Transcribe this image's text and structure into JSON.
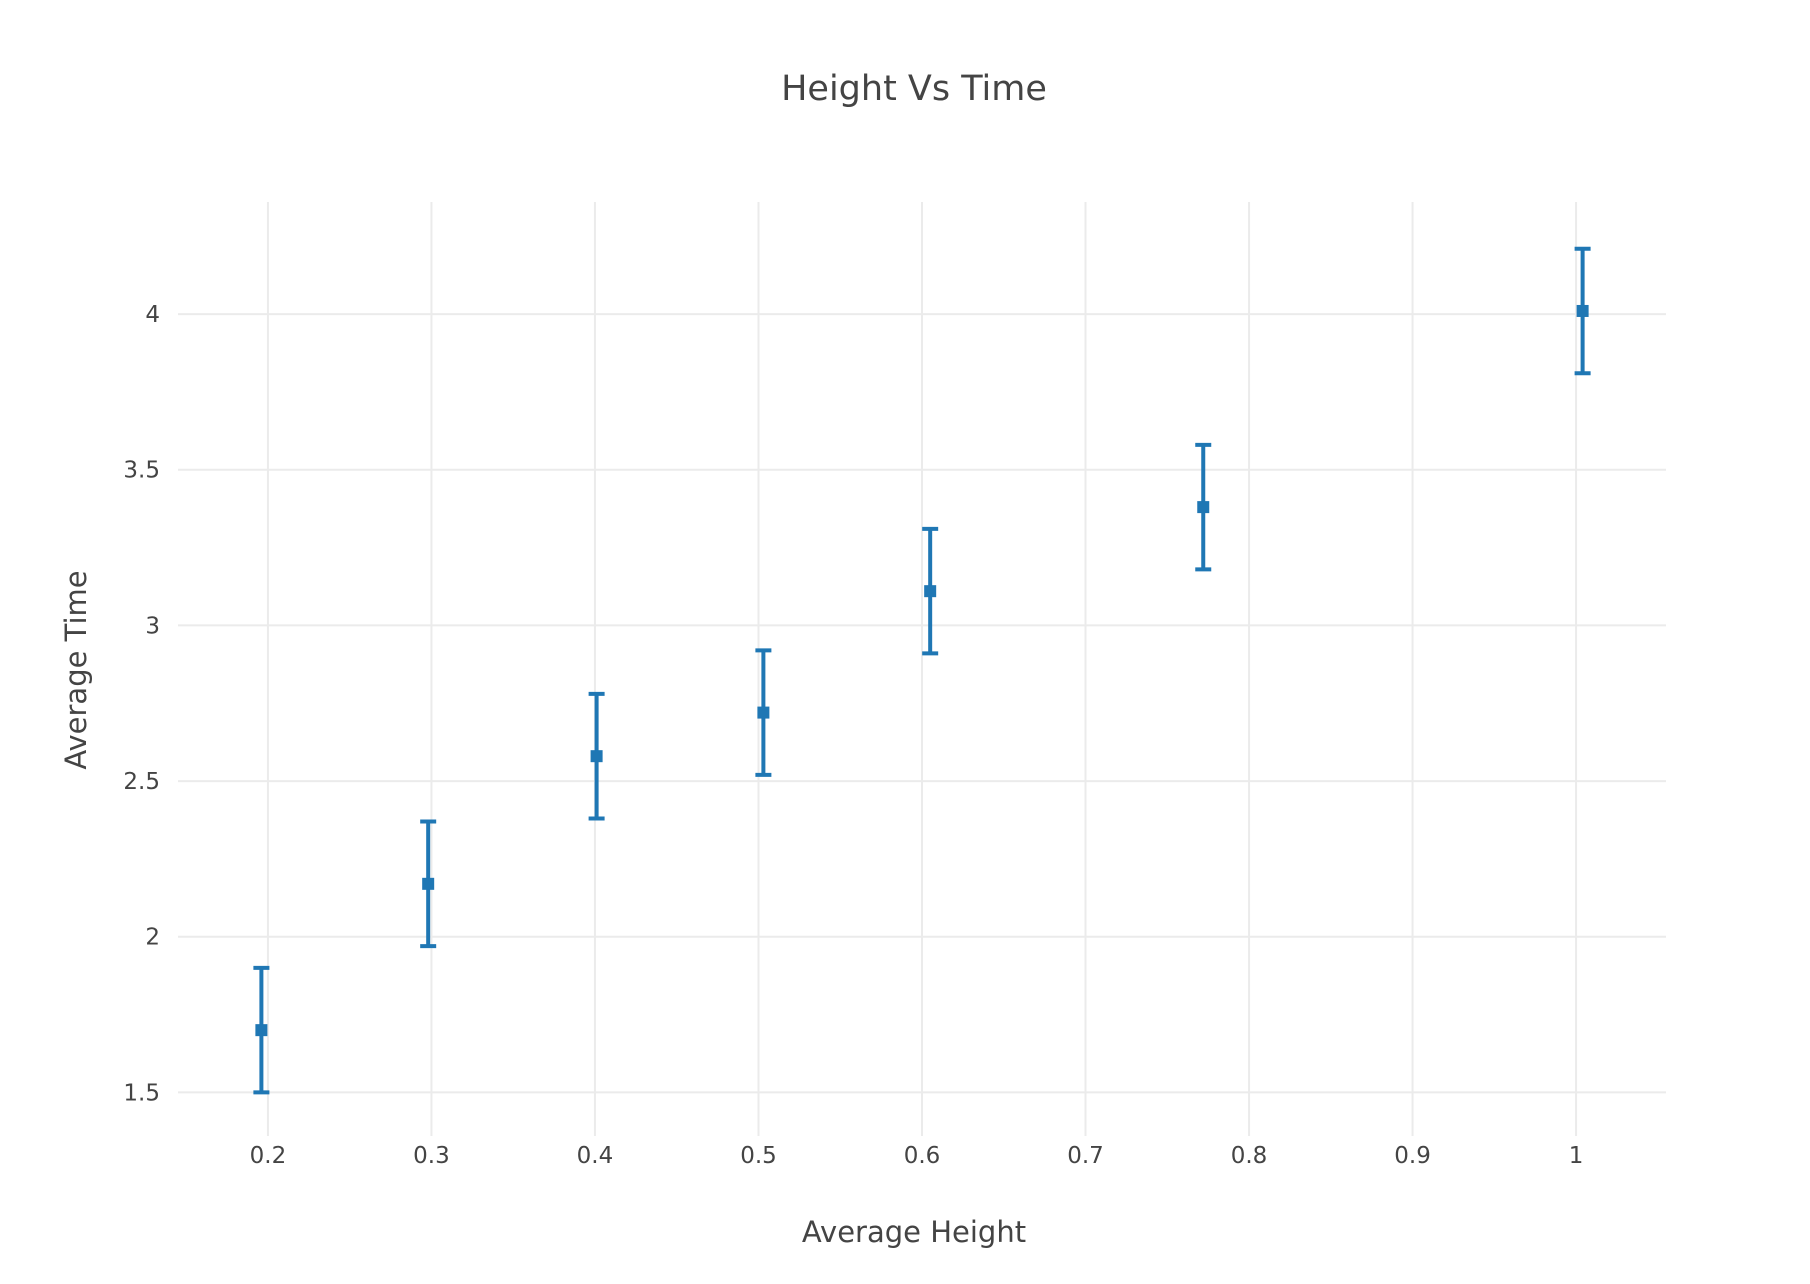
{
  "chart_data": {
    "type": "scatter",
    "title": "Height Vs Time",
    "xlabel": "Average Height",
    "ylabel": "Average Time",
    "xlim": [
      0.145,
      1.055
    ],
    "ylim": [
      1.36,
      4.36
    ],
    "xticks": [
      0.2,
      0.3,
      0.4,
      0.5,
      0.6,
      0.7,
      0.8,
      0.9,
      1
    ],
    "xtick_labels": [
      "0.2",
      "0.3",
      "0.4",
      "0.5",
      "0.6",
      "0.7",
      "0.8",
      "0.9",
      "1"
    ],
    "yticks": [
      1.5,
      2,
      2.5,
      3,
      3.5,
      4
    ],
    "ytick_labels": [
      "1.5",
      "2",
      "2.5",
      "3",
      "3.5",
      "4"
    ],
    "grid": true,
    "series": [
      {
        "name": "Height Vs Time",
        "color": "#1f77b4",
        "marker": "square",
        "x": [
          0.196,
          0.298,
          0.401,
          0.503,
          0.605,
          0.772,
          1.004
        ],
        "y": [
          1.7,
          2.17,
          2.58,
          2.72,
          3.11,
          3.38,
          4.01
        ],
        "error_y": 0.2
      }
    ]
  }
}
